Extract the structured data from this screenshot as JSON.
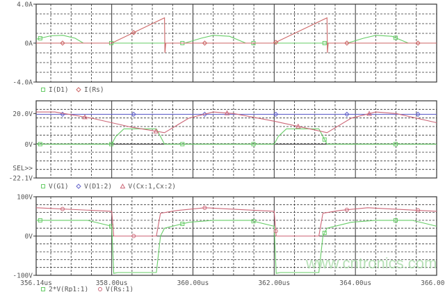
{
  "chart_data": [
    {
      "type": "line",
      "ylim": [
        -4,
        4
      ],
      "ytick_labels": [
        "4.0A",
        "0A",
        "-4.0A"
      ],
      "yticks": [
        4,
        0,
        -4
      ],
      "xlim": [
        356.14,
        366.0
      ],
      "grid": true,
      "legend_placement": "bottom-left",
      "series": [
        {
          "name": "I(D1)",
          "color": "#66cc66",
          "marker": "square",
          "x": [
            356.14,
            356.5,
            356.8,
            357.1,
            357.3,
            359.8,
            360.2,
            360.5,
            360.9,
            361.3,
            363.8,
            364.2,
            364.5,
            364.9,
            365.3,
            366.0
          ],
          "y": [
            0.4,
            0.75,
            0.8,
            0.5,
            0.0,
            0.0,
            0.5,
            0.8,
            0.7,
            0.0,
            0.0,
            0.5,
            0.8,
            0.7,
            0.0,
            0.0
          ]
        },
        {
          "name": "I(Rs)",
          "color": "#cc6666",
          "marker": "diamond",
          "x": [
            356.14,
            358.0,
            359.3,
            359.31,
            359.33,
            359.4,
            362.0,
            363.3,
            363.31,
            363.33,
            363.4,
            366.0
          ],
          "y": [
            0,
            0,
            2.6,
            -1.0,
            0,
            0,
            0,
            2.6,
            -1.0,
            0,
            0,
            0
          ]
        }
      ]
    },
    {
      "type": "line",
      "ylim": [
        -22.1,
        28
      ],
      "ytick_labels": [
        "20.0V",
        "0V",
        "-22.1V"
      ],
      "yticks": [
        20,
        0,
        -22.1
      ],
      "xlim": [
        356.14,
        366.0
      ],
      "grid": true,
      "selected_label": "SEL>>",
      "legend_placement": "bottom-left",
      "series": [
        {
          "name": "V(G1)",
          "color": "#66cc66",
          "marker": "square",
          "x": [
            356.14,
            358.0,
            358.1,
            358.3,
            359.1,
            359.3,
            362.0,
            362.1,
            362.3,
            363.1,
            363.3,
            366.0
          ],
          "y": [
            0,
            0,
            5,
            10,
            10,
            0,
            0,
            5,
            10,
            10,
            0,
            0
          ]
        },
        {
          "name": "V(D1:2)",
          "color": "#6666cc",
          "marker": "diamond",
          "x": [
            356.14,
            366.0
          ],
          "y": [
            19.5,
            19.5
          ]
        },
        {
          "name": "V(Cx:1,Cx:2)",
          "color": "#cc6677",
          "marker": "triangle",
          "x": [
            356.14,
            356.6,
            357.5,
            358.5,
            359.3,
            359.9,
            360.5,
            361.0,
            362.0,
            363.3,
            363.9,
            364.5,
            365.0,
            366.0
          ],
          "y": [
            21,
            21,
            17,
            11,
            7.5,
            17,
            21,
            20,
            15,
            7.5,
            17,
            21,
            20,
            14
          ]
        }
      ]
    },
    {
      "type": "line",
      "ylim": [
        -100,
        100
      ],
      "ytick_labels": [
        "100V",
        "0V",
        "-100V"
      ],
      "yticks": [
        100,
        0,
        -100
      ],
      "xlim": [
        356.14,
        366.0
      ],
      "xtick_labels": [
        "356.14us",
        "358.00us",
        "360.00us",
        "362.00us",
        "364.00us",
        "366.00us"
      ],
      "xticks": [
        356.14,
        358,
        360,
        362,
        364,
        366
      ],
      "grid": true,
      "legend_placement": "bottom-left",
      "series": [
        {
          "name": "2*V(Rp1:1)",
          "color": "#66cc66",
          "marker": "square",
          "x": [
            356.14,
            357.4,
            358.0,
            358.05,
            358.15,
            359.1,
            359.2,
            359.3,
            359.9,
            360.5,
            361.4,
            362.0,
            362.05,
            362.15,
            363.1,
            363.2,
            363.3,
            363.9,
            364.5,
            365.4,
            366.0
          ],
          "y": [
            40,
            40,
            25,
            -95,
            -93,
            -93,
            0,
            20,
            35,
            40,
            40,
            25,
            -95,
            -93,
            -93,
            0,
            20,
            35,
            40,
            40,
            25
          ]
        },
        {
          "name": "V(Rs:1)",
          "color": "#cc6677",
          "marker": "circle",
          "x": [
            356.14,
            358.0,
            358.05,
            359.1,
            359.2,
            359.6,
            360.3,
            362.0,
            362.05,
            363.1,
            363.2,
            363.6,
            364.3,
            366.0
          ],
          "y": [
            72,
            63,
            0,
            0,
            58,
            65,
            72,
            63,
            0,
            0,
            58,
            65,
            72,
            63
          ]
        }
      ]
    }
  ],
  "watermark": "www.cntronics.com"
}
